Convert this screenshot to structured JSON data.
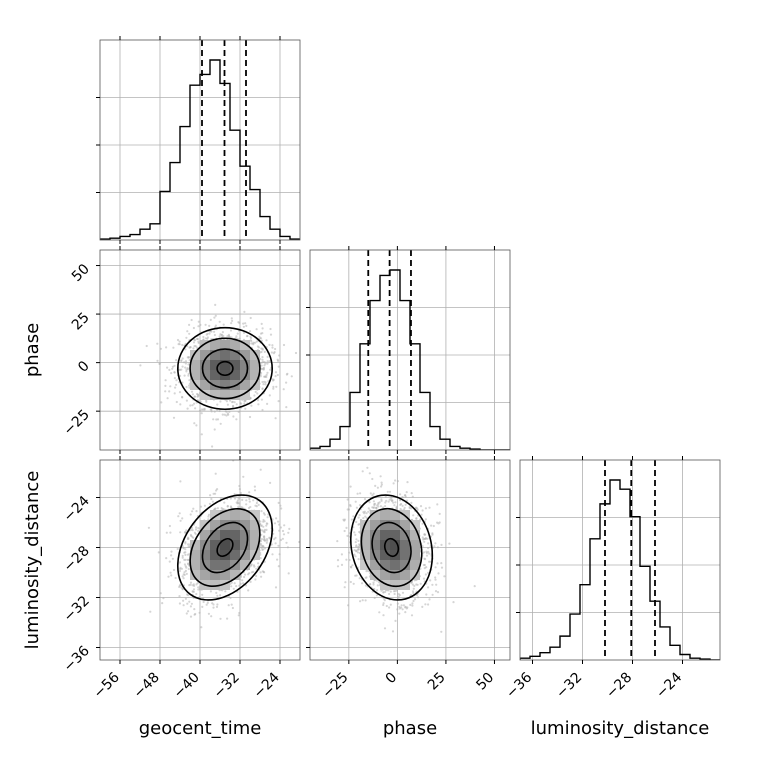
{
  "chart_data": {
    "type": "corner",
    "parameters": [
      {
        "name": "geocent_time",
        "label": "geocent_time",
        "range": [
          -60,
          -20
        ],
        "ticks": [
          -56,
          -48,
          -40,
          -32,
          -24
        ],
        "tick_labels": [
          "−56",
          "−48",
          "−40",
          "−32",
          "−24"
        ],
        "quantiles": [
          -39.6,
          -35.1,
          -30.8
        ],
        "histogram": [
          0.005,
          0.01,
          0.02,
          0.03,
          0.06,
          0.09,
          0.27,
          0.43,
          0.63,
          0.86,
          0.92,
          1.0,
          0.87,
          0.61,
          0.41,
          0.28,
          0.13,
          0.06,
          0.02,
          0.005
        ],
        "center": -35,
        "sigma": 4.5
      },
      {
        "name": "phase",
        "label": "phase",
        "range": [
          -45,
          58
        ],
        "ticks": [
          -25,
          0,
          25,
          50
        ],
        "tick_labels": [
          "−25",
          "0",
          "25",
          "50"
        ],
        "quantiles": [
          -15.0,
          -4.0,
          7.0
        ],
        "histogram": [
          0.01,
          0.02,
          0.06,
          0.13,
          0.32,
          0.59,
          0.83,
          0.97,
          1.0,
          0.83,
          0.59,
          0.32,
          0.13,
          0.06,
          0.02,
          0.01,
          0.005,
          0.0,
          0.0,
          0.0
        ],
        "center": -3,
        "sigma": 10
      },
      {
        "name": "luminosity_distance",
        "label": "luminosity_distance",
        "range": [
          -37,
          -21
        ],
        "ticks": [
          -36,
          -32,
          -28,
          -24
        ],
        "tick_labels": [
          "−36",
          "−32",
          "−28",
          "−24"
        ],
        "quantiles": [
          -30.2,
          -28.1,
          -26.2
        ],
        "histogram": [
          0.01,
          0.02,
          0.04,
          0.07,
          0.13,
          0.25,
          0.41,
          0.66,
          0.85,
          0.98,
          0.93,
          0.78,
          0.51,
          0.32,
          0.18,
          0.08,
          0.03,
          0.01,
          0.005,
          0.0
        ],
        "center": -28,
        "sigma": 2
      }
    ],
    "correlations": {
      "1-0": 0.0,
      "2-0": 0.35,
      "2-1": -0.15
    },
    "grid": true
  }
}
